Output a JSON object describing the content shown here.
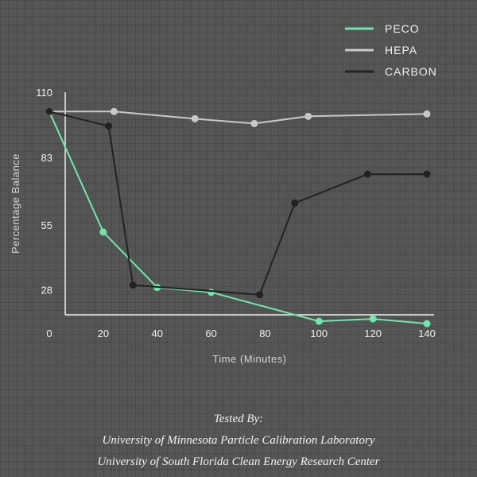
{
  "chart_data": {
    "type": "line",
    "xlabel": "Time (Minutes)",
    "ylabel": "Percentage Balance",
    "xlim": [
      0,
      140
    ],
    "ylim": [
      18,
      110
    ],
    "x_ticks": [
      0,
      20,
      40,
      60,
      80,
      100,
      120,
      140
    ],
    "y_ticks": [
      110,
      83,
      55,
      28
    ],
    "legend_position": "top-right",
    "series": [
      {
        "name": "PECO",
        "color": "#6ee8aa",
        "x": [
          0,
          20,
          40,
          60,
          100,
          120,
          140
        ],
        "y": [
          102,
          52,
          29,
          27,
          15,
          16,
          14
        ]
      },
      {
        "name": "HEPA",
        "color": "#c8c8c8",
        "x": [
          0,
          24,
          54,
          76,
          96,
          140
        ],
        "y": [
          102,
          102,
          99,
          97,
          100,
          101
        ]
      },
      {
        "name": "CARBON",
        "color": "#222222",
        "x": [
          0,
          22,
          31,
          78,
          91,
          118,
          140
        ],
        "y": [
          102,
          96,
          30,
          26,
          64,
          76,
          76
        ]
      }
    ]
  },
  "credits": {
    "line1": "Tested By:",
    "line2": "University of Minnesota Particle Calibration Laboratory",
    "line3": "University of South Florida Clean Energy Research Center"
  }
}
